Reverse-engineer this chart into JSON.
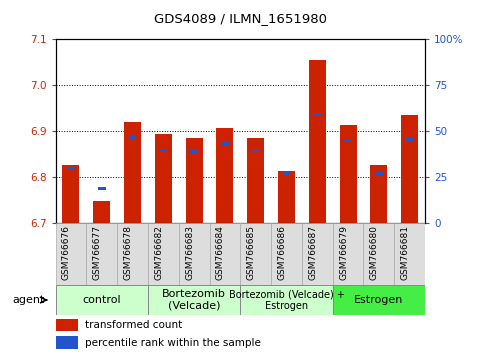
{
  "title": "GDS4089 / ILMN_1651980",
  "samples": [
    "GSM766676",
    "GSM766677",
    "GSM766678",
    "GSM766682",
    "GSM766683",
    "GSM766684",
    "GSM766685",
    "GSM766686",
    "GSM766687",
    "GSM766679",
    "GSM766680",
    "GSM766681"
  ],
  "red_values": [
    6.825,
    6.748,
    6.92,
    6.893,
    6.885,
    6.906,
    6.885,
    6.812,
    7.055,
    6.914,
    6.825,
    6.935
  ],
  "blue_values": [
    6.818,
    6.775,
    6.885,
    6.858,
    6.855,
    6.873,
    6.857,
    6.808,
    6.936,
    6.879,
    6.808,
    6.882
  ],
  "ymin": 6.7,
  "ymax": 7.1,
  "yticks": [
    6.7,
    6.8,
    6.9,
    7.0,
    7.1
  ],
  "right_yticks": [
    0,
    25,
    50,
    75,
    100
  ],
  "right_ytick_labels": [
    "0",
    "25",
    "50",
    "75",
    "100%"
  ],
  "bar_color": "#cc2200",
  "blue_color": "#2255cc",
  "bar_width": 0.55,
  "groups": [
    {
      "label": "control",
      "start": 0,
      "end": 2,
      "color": "#ccffcc",
      "fontsize": 8
    },
    {
      "label": "Bortezomib\n(Velcade)",
      "start": 3,
      "end": 5,
      "color": "#ccffcc",
      "fontsize": 8
    },
    {
      "label": "Bortezomib (Velcade) +\nEstrogen",
      "start": 6,
      "end": 8,
      "color": "#ccffcc",
      "fontsize": 7
    },
    {
      "label": "Estrogen",
      "start": 9,
      "end": 11,
      "color": "#44ee44",
      "fontsize": 8
    }
  ],
  "legend_red": "transformed count",
  "legend_blue": "percentile rank within the sample",
  "tick_label_color": "#cc2200",
  "right_tick_color": "#2255cc",
  "bg_color": "#ffffff"
}
